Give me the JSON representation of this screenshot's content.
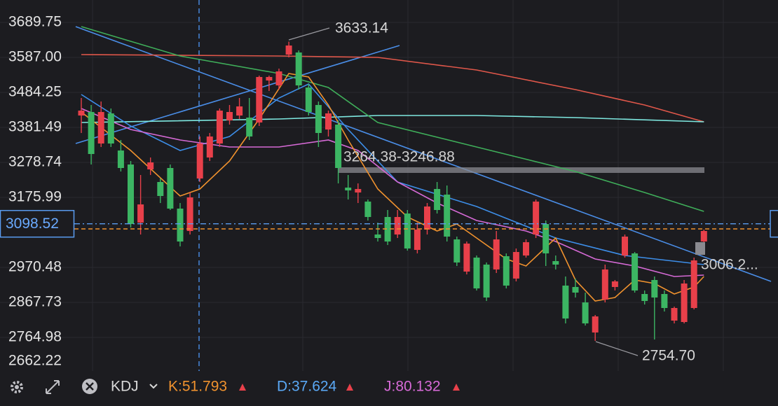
{
  "chart_data": {
    "type": "candlestick",
    "ylim": [
      2666.35,
      3755.5
    ],
    "yticks": [
      3689.75,
      {
        "value": 3587,
        "label": "3587.00"
      },
      3484.25,
      3381.49,
      3278.74,
      3175.99,
      2970.48,
      2867.73,
      2764.98,
      2662.22
    ],
    "grid": true,
    "up_color": "#e8404a",
    "down_color": "#3cb563",
    "candles": {
      "open": [
        3416.4,
        3426.7,
        3334.2,
        3422.6,
        3313.7,
        3272.6,
        3102.0,
        3258.2,
        3221.2,
        3262.3,
        3143.1,
        3077.4,
        3231.5,
        3293.1,
        3334.2,
        3402.0,
        3416.4,
        3410.3,
        3395.9,
        3519.2,
        3504.8,
        3595.2,
        3601.4,
        3498.6,
        3447.3,
        3375.3,
        3389.7,
        3204.8,
        3190.4,
        3163.7,
        3067.1,
        3118.5,
        3067.1,
        3128.7,
        3021.9,
        3081.5,
        3200.7,
        3184.2,
        3052.7,
        2958.2,
        2999.3,
        2978.7,
        2964.4,
        3003.4,
        2937.7,
        3005.4,
        3067.1,
        3097.9,
        2989.0,
        2917.1,
        2913.0,
        2867.7,
        2779.4,
        2875.9,
        2913.0,
        3005.4,
        3011.6,
        2892.4,
        2933.5,
        2892.4,
        2814.3,
        2810.2,
        2851.3,
        3046.5
      ],
      "high": [
        3467.8,
        3447.3,
        3457.5,
        3437.0,
        3344.5,
        3282.9,
        3241.8,
        3293.1,
        3231.5,
        3272.6,
        3159.5,
        3190.4,
        3354.8,
        3365.1,
        3437.0,
        3447.3,
        3467.8,
        3467.8,
        3533.6,
        3533.6,
        3554.1,
        3633.14,
        3607.5,
        3508.9,
        3457.5,
        3430.8,
        3402.0,
        3241.8,
        3217.1,
        3169.8,
        3102.0,
        3139.0,
        3139.0,
        3139.0,
        3102.0,
        3159.5,
        3221.2,
        3210.9,
        3060.9,
        3046.5,
        3005.4,
        2984.9,
        3077.4,
        3011.6,
        3026.0,
        3052.7,
        3169.8,
        3108.2,
        3005.4,
        2943.8,
        2937.7,
        2896.5,
        2830.8,
        2978.7,
        2933.5,
        3067.1,
        3015.7,
        2902.7,
        2943.8,
        2902.7,
        2855.4,
        2933.5,
        2999.3,
        3081.5
      ],
      "low": [
        3365.1,
        3272.6,
        3324.0,
        3324.0,
        3252.0,
        3087.6,
        3067.1,
        3241.8,
        3159.5,
        3139.0,
        3032.1,
        3067.1,
        3221.2,
        3282.9,
        3324.0,
        3389.7,
        3406.2,
        3344.5,
        3385.6,
        3488.4,
        3492.5,
        3587.0,
        3492.5,
        3416.4,
        3324.0,
        3354.8,
        3217.1,
        3169.8,
        3159.5,
        3108.2,
        3046.5,
        3036.3,
        3056.8,
        3019.8,
        3011.6,
        3067.1,
        3128.7,
        3046.5,
        2974.6,
        2950.0,
        2902.7,
        2871.9,
        2954.1,
        2908.8,
        2929.4,
        2999.3,
        3056.8,
        2974.6,
        2964.4,
        2806.1,
        2882.1,
        2799.9,
        2754.7,
        2867.7,
        2902.7,
        2999.3,
        2896.5,
        2861.6,
        2758.8,
        2841.0,
        2806.1,
        2806.1,
        2847.2,
        3040.4
      ],
      "close": [
        3430.8,
        3303.4,
        3426.7,
        3334.2,
        3262.3,
        3097.9,
        3155.4,
        3278.7,
        3180.1,
        3143.1,
        3046.5,
        3176.0,
        3334.2,
        3354.8,
        3430.8,
        3426.7,
        3443.1,
        3354.8,
        3529.5,
        3529.5,
        3545.9,
        3621.9,
        3504.8,
        3426.7,
        3365.1,
        3422.6,
        3262.3,
        3196.5,
        3200.7,
        3118.5,
        3056.8,
        3046.5,
        3118.5,
        3026.0,
        3081.5,
        3149.3,
        3139.0,
        3060.9,
        2984.9,
        3040.4,
        2908.8,
        2882.1,
        3052.7,
        2917.1,
        3015.7,
        3044.5,
        3163.7,
        3011.6,
        2978.7,
        2820.5,
        2896.5,
        2806.1,
        2826.6,
        2964.4,
        2929.4,
        3060.9,
        2902.7,
        2871.9,
        2882.1,
        2851.3,
        2851.3,
        2923.2,
        2991.0,
        3077.4
      ]
    },
    "lines": [
      {
        "color": "#e0574a",
        "x": [
          0,
          20,
          30,
          40,
          50,
          57,
          63
        ],
        "values": [
          3595.2,
          3591.1,
          3587.0,
          3550.0,
          3492.5,
          3447.3,
          3397.9
        ]
      },
      {
        "color": "#7ee8e0",
        "x": [
          0,
          20,
          30,
          40,
          50,
          63
        ],
        "values": [
          3395.9,
          3406.2,
          3416.4,
          3416.4,
          3410.3,
          3397.9
        ]
      },
      {
        "color": "#3fae5a",
        "x": [
          0,
          10,
          20,
          25,
          30,
          40,
          50,
          57,
          63
        ],
        "values": [
          3677.4,
          3591.1,
          3539.7,
          3498.6,
          3395.9,
          3324.0,
          3252.0,
          3190.4,
          3134.9
        ]
      },
      {
        "color": "#3d8ee8",
        "x": [
          0,
          5,
          10,
          15,
          20,
          23,
          27,
          32,
          40,
          48,
          55,
          63
        ],
        "values": [
          3478.1,
          3385.6,
          3313.7,
          3354.8,
          3467.8,
          3508.9,
          3375.3,
          3221.2,
          3149.3,
          3056.8,
          3005.4,
          2978.7
        ]
      },
      {
        "color": "#d66ad6",
        "x": [
          0,
          5,
          10,
          15,
          20,
          25,
          28,
          32,
          36,
          40,
          45,
          48,
          52,
          56,
          60,
          63
        ],
        "values": [
          3437.0,
          3375.3,
          3344.5,
          3324.0,
          3324.0,
          3344.5,
          3313.7,
          3221.2,
          3159.5,
          3108.2,
          3077.4,
          3046.5,
          2995.2,
          2974.6,
          2943.8,
          2947.9
        ]
      },
      {
        "color": "#f0922e",
        "x": [
          0,
          5,
          10,
          12,
          15,
          18,
          21,
          23,
          25,
          27,
          30,
          33,
          36,
          38,
          40,
          43,
          45,
          48,
          50,
          52,
          54,
          56,
          58,
          60,
          62,
          63
        ],
        "values": [
          3426.7,
          3313.7,
          3180.1,
          3200.7,
          3282.9,
          3406.2,
          3539.7,
          3529.5,
          3447.3,
          3344.5,
          3200.7,
          3118.5,
          3077.4,
          3097.9,
          3056.8,
          2995.2,
          2974.6,
          3056.8,
          2933.5,
          2871.9,
          2882.1,
          2933.5,
          2923.2,
          2892.4,
          2913.0,
          2943.8
        ]
      }
    ],
    "price_line": {
      "value": 3098.52,
      "label": "3098.52"
    },
    "avg_line": 3083.5,
    "high_label": "3633.14",
    "low_label": "2754.70",
    "range_label": "3264.38-3246.88",
    "right_label": "3006.2...",
    "indicator": {
      "name": "KDJ",
      "items": [
        {
          "text": "K:51.793",
          "color": "#f0922e"
        },
        {
          "text": "D:37.624",
          "color": "#5aa8f5"
        },
        {
          "text": "J:80.132",
          "color": "#d66ad6"
        }
      ]
    }
  }
}
